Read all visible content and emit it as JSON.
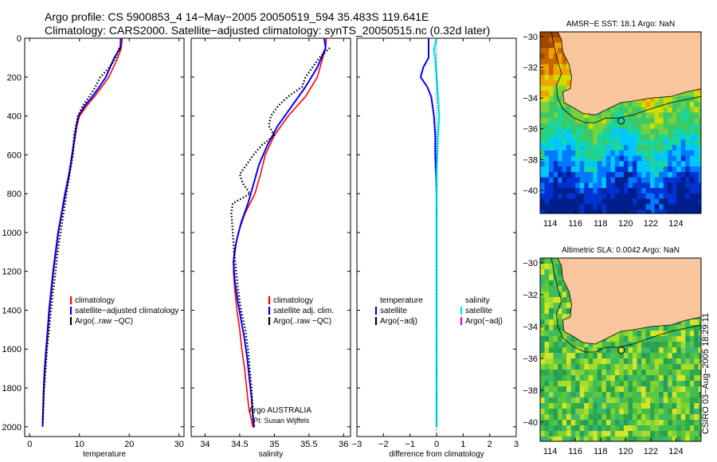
{
  "header": {
    "line1": "Argo profile: CS 5900853_4 14−May−2005 20050519_594 35.483S 119.641E",
    "line2": "Climatology: CARS2000. Satellite−adjusted climatology: synTS_20050515.nc (0.32d later)"
  },
  "side_stamp": "CSIRO 03−Aug−2005 18:29:11",
  "colors": {
    "climatology": "#ff0000",
    "satellite": "#0000ff",
    "argo": "#000000",
    "sal_satellite": "#00e5ee",
    "sal_argo": "#e000e0",
    "land": "#f9c59d"
  },
  "chart_data": [
    {
      "type": "line",
      "xlabel": "temperature",
      "ylabel": "",
      "xlim": [
        -1,
        31
      ],
      "ylim": [
        2050,
        0
      ],
      "xticks": [
        "0",
        "10",
        "20",
        "30"
      ],
      "yticks": [
        "0",
        "200",
        "400",
        "600",
        "800",
        "1000",
        "1200",
        "1400",
        "1600",
        "1800",
        "2000"
      ],
      "legend": [
        "climatology",
        "satellite−adjusted climatology",
        "Argo(..raw −QC)"
      ],
      "series": [
        {
          "name": "climatology",
          "x": [
            18.6,
            18.4,
            17.7,
            15.9,
            14.5,
            13.0,
            11.4,
            10.0,
            9.5,
            9.2,
            8.6,
            8.0,
            7.2,
            6.5,
            5.8,
            5.3,
            4.8,
            4.4,
            4.0,
            3.7,
            3.4,
            3.1,
            2.9,
            2.6
          ],
          "depth": [
            0,
            50,
            100,
            200,
            250,
            300,
            350,
            400,
            450,
            500,
            600,
            700,
            800,
            900,
            1000,
            1100,
            1200,
            1300,
            1400,
            1500,
            1600,
            1700,
            1800,
            2000
          ]
        },
        {
          "name": "satellite",
          "x": [
            18.3,
            18.2,
            17.0,
            15.3,
            14.0,
            12.6,
            11.0,
            9.8,
            9.4,
            9.1,
            8.5,
            7.9,
            7.1,
            6.4,
            5.7,
            5.2,
            4.7,
            4.3,
            3.9,
            3.6,
            3.3,
            3.0,
            2.8,
            2.6
          ],
          "depth": [
            0,
            50,
            100,
            200,
            250,
            300,
            350,
            400,
            450,
            500,
            600,
            700,
            800,
            900,
            1000,
            1100,
            1200,
            1300,
            1400,
            1500,
            1600,
            1700,
            1800,
            2000
          ]
        },
        {
          "name": "argo",
          "x": [
            18.0,
            17.3,
            16.0,
            14.2,
            13.2,
            12.0,
            10.6,
            9.7,
            9.3,
            8.9,
            8.7,
            8.0,
            7.4,
            6.8,
            6.2,
            5.6,
            5.2,
            4.7,
            4.3,
            3.9,
            3.5,
            3.2,
            2.9,
            2.6
          ],
          "depth": [
            50,
            100,
            150,
            200,
            250,
            300,
            350,
            400,
            450,
            500,
            600,
            700,
            800,
            900,
            1000,
            1100,
            1200,
            1300,
            1400,
            1500,
            1600,
            1700,
            1800,
            1980
          ]
        }
      ]
    },
    {
      "type": "line",
      "xlabel": "salinity",
      "xlim": [
        33.8,
        36.1
      ],
      "ylim": [
        2050,
        0
      ],
      "xticks": [
        "34",
        "34.5",
        "35",
        "35.5",
        "36"
      ],
      "legend": [
        "climatology",
        "satellite adj. clim.",
        "Argo(..raw −QC)"
      ],
      "annotation": [
        "Argo AUSTRALIA",
        "PI: Susan Wijffels"
      ],
      "series": [
        {
          "name": "climatology",
          "x": [
            35.75,
            35.74,
            35.7,
            35.62,
            35.45,
            35.2,
            35.0,
            34.87,
            34.8,
            34.72,
            34.58,
            34.48,
            34.42,
            34.41,
            34.43,
            34.46,
            34.5,
            34.53,
            34.57,
            34.6,
            34.63,
            34.66,
            34.69,
            34.72
          ],
          "depth": [
            0,
            50,
            100,
            200,
            300,
            400,
            500,
            600,
            700,
            800,
            900,
            1000,
            1100,
            1200,
            1300,
            1400,
            1500,
            1600,
            1700,
            1800,
            1900,
            1950,
            2000,
            2000
          ]
        },
        {
          "name": "satellite",
          "x": [
            35.72,
            35.74,
            35.62,
            35.45,
            35.25,
            35.05,
            34.9,
            34.78,
            34.7,
            34.62,
            34.52,
            34.45,
            34.41,
            34.43,
            34.47,
            34.52,
            34.57,
            34.61,
            34.64,
            34.67,
            34.69,
            34.71
          ],
          "depth": [
            0,
            50,
            150,
            250,
            350,
            450,
            550,
            650,
            750,
            850,
            950,
            1050,
            1150,
            1250,
            1350,
            1450,
            1550,
            1650,
            1750,
            1850,
            1950,
            2000
          ]
        },
        {
          "name": "argo",
          "x": [
            35.8,
            35.65,
            35.55,
            35.45,
            35.4,
            35.2,
            35.05,
            34.95,
            34.92,
            35.0,
            34.82,
            34.7,
            34.6,
            34.5,
            34.55,
            34.65,
            34.4,
            34.38,
            34.4,
            34.42,
            34.45,
            34.48,
            34.52,
            34.58,
            34.62,
            34.67,
            34.7
          ],
          "depth": [
            50,
            100,
            150,
            200,
            250,
            300,
            350,
            400,
            450,
            500,
            550,
            600,
            650,
            700,
            750,
            800,
            850,
            900,
            1000,
            1100,
            1200,
            1300,
            1400,
            1500,
            1600,
            1800,
            1980
          ]
        }
      ]
    },
    {
      "type": "line",
      "xlabel": "difference from climatology",
      "xlim": [
        -3,
        3
      ],
      "ylim": [
        2050,
        0
      ],
      "xticks": [
        "−3",
        "−2",
        "−1",
        "0",
        "1",
        "2",
        "3"
      ],
      "legend_left": [
        "temperature",
        "satellite",
        "Argo(−adj)"
      ],
      "legend_right": [
        "salinity",
        "satellite",
        "Argo(−adj)"
      ],
      "series": [
        {
          "name": "temperature satellite",
          "x": [
            -0.3,
            -0.3,
            -0.5,
            -0.6,
            -0.35,
            -0.2,
            -0.1,
            -0.05,
            -0.05,
            0.0,
            0.0,
            0.0,
            0.0
          ],
          "depth": [
            0,
            100,
            150,
            200,
            250,
            300,
            400,
            500,
            600,
            800,
            1000,
            1500,
            2000
          ]
        },
        {
          "name": "salinity satellite",
          "x": [
            0.0,
            -0.1,
            -0.05,
            0.0,
            0.05,
            0.1,
            0.05,
            0.0,
            0.0,
            0.0,
            0.0,
            0.0
          ],
          "depth": [
            0,
            60,
            100,
            200,
            300,
            400,
            500,
            700,
            900,
            1100,
            1500,
            2000
          ]
        }
      ]
    },
    {
      "type": "heatmap",
      "title": "AMSR−E SST: 18.1 Argo: NaN",
      "xticks": [
        "114",
        "116",
        "118",
        "120",
        "122",
        "124"
      ],
      "yticks": [
        "−30",
        "−32",
        "−34",
        "−36",
        "−38",
        "−40"
      ],
      "lon_range": [
        113.2,
        126
      ],
      "lat_range": [
        -41.5,
        -29.7
      ],
      "argo_position": {
        "lon": 119.641,
        "lat": -35.483
      }
    },
    {
      "type": "heatmap",
      "title": "Altimetric SLA: 0.0042 Argo: NaN",
      "xticks": [
        "114",
        "116",
        "118",
        "120",
        "122",
        "124"
      ],
      "yticks": [
        "−30",
        "−32",
        "−34",
        "−36",
        "−38",
        "−40"
      ],
      "lon_range": [
        113.2,
        126
      ],
      "lat_range": [
        -41.2,
        -29.7
      ],
      "argo_position": {
        "lon": 119.641,
        "lat": -35.483
      }
    }
  ]
}
